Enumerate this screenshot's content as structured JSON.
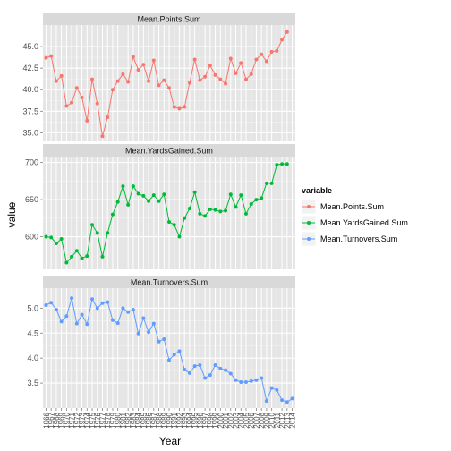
{
  "chart_data": {
    "type": "line",
    "x": [
      1966,
      1967,
      1968,
      1969,
      1970,
      1971,
      1972,
      1973,
      1974,
      1975,
      1976,
      1977,
      1978,
      1979,
      1980,
      1981,
      1982,
      1983,
      1984,
      1985,
      1986,
      1987,
      1988,
      1989,
      1990,
      1991,
      1992,
      1993,
      1994,
      1995,
      1996,
      1997,
      1998,
      1999,
      2000,
      2001,
      2002,
      2003,
      2004,
      2005,
      2006,
      2007,
      2008,
      2009,
      2010,
      2011,
      2012,
      2013,
      2014
    ],
    "xlabel": "Year",
    "ylabel": "value",
    "legend_title": "variable",
    "legend_position": "right",
    "grid": true,
    "panels": [
      {
        "strip": "Mean.Points.Sum",
        "series_index": 0,
        "ylim": [
          34,
          47.5
        ],
        "yticks": [
          35.0,
          37.5,
          40.0,
          42.5,
          45.0
        ],
        "ytick_labels": [
          "35.0",
          "37.5",
          "40.0",
          "42.5",
          "45.0"
        ]
      },
      {
        "strip": "Mean.YardsGained.Sum",
        "series_index": 1,
        "ylim": [
          556,
          708
        ],
        "yticks": [
          600,
          650,
          700
        ],
        "ytick_labels": [
          "600",
          "650",
          "700"
        ]
      },
      {
        "strip": "Mean.Turnovers.Sum",
        "series_index": 2,
        "ylim": [
          3.0,
          5.4
        ],
        "yticks": [
          3.5,
          4.0,
          4.5,
          5.0
        ],
        "ytick_labels": [
          "3.5",
          "4.0",
          "4.5",
          "5.0"
        ]
      }
    ],
    "series": [
      {
        "name": "Mean.Points.Sum",
        "color": "#F8766D",
        "values": [
          43.7,
          43.9,
          41.0,
          41.6,
          38.1,
          38.5,
          40.2,
          39.1,
          36.4,
          41.2,
          38.4,
          34.6,
          36.8,
          40.0,
          41.0,
          41.8,
          40.9,
          43.8,
          42.3,
          42.9,
          41.0,
          43.4,
          40.5,
          41.1,
          40.2,
          38.0,
          37.8,
          38.0,
          40.8,
          43.5,
          41.1,
          41.5,
          42.8,
          41.7,
          41.2,
          40.7,
          43.6,
          41.9,
          43.1,
          41.2,
          41.8,
          43.5,
          44.1,
          43.3,
          44.4,
          44.5,
          45.8,
          46.7,
          null
        ]
      },
      {
        "name": "Mean.YardsGained.Sum",
        "color": "#00BA38",
        "values": [
          600,
          599,
          591,
          597,
          565,
          573,
          581,
          571,
          574,
          616,
          605,
          573,
          605,
          630,
          647,
          668,
          643,
          668,
          658,
          655,
          648,
          656,
          648,
          657,
          620,
          616,
          600,
          625,
          638,
          660,
          631,
          628,
          637,
          636,
          634,
          635,
          657,
          640,
          656,
          631,
          644,
          650,
          652,
          672,
          672,
          697,
          698,
          698,
          null
        ]
      },
      {
        "name": "Mean.Turnovers.Sum",
        "color": "#619CFF",
        "values": [
          5.06,
          5.11,
          4.97,
          4.73,
          4.84,
          5.2,
          4.69,
          4.87,
          4.68,
          5.18,
          5.0,
          5.1,
          5.12,
          4.76,
          4.7,
          5.0,
          4.92,
          4.97,
          4.49,
          4.8,
          4.52,
          4.69,
          4.33,
          4.38,
          3.96,
          4.07,
          4.14,
          3.77,
          3.7,
          3.84,
          3.86,
          3.6,
          3.66,
          3.86,
          3.79,
          3.76,
          3.69,
          3.56,
          3.52,
          3.52,
          3.54,
          3.56,
          3.6,
          3.14,
          3.4,
          3.36,
          3.16,
          3.12,
          3.19
        ]
      }
    ]
  }
}
